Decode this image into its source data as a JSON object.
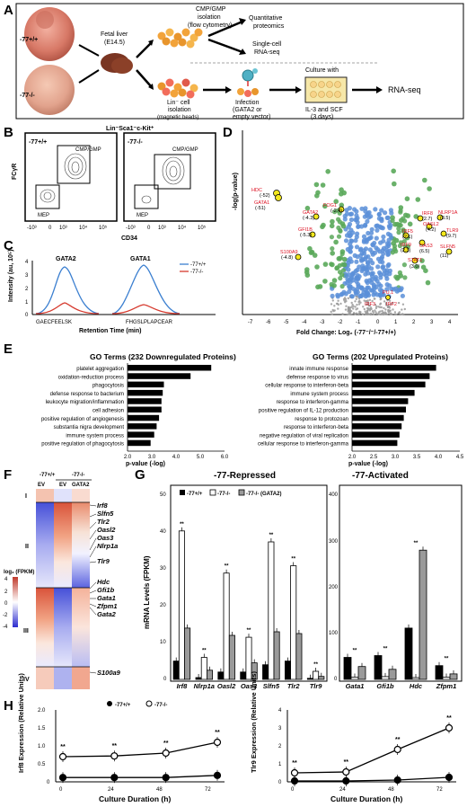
{
  "panels": {
    "A": {
      "letter": "A",
      "wt_label": "-77+/+",
      "ko_label": "-77-/-",
      "fetal_liver": "Fetal liver",
      "fetal_age": "(E14.5)",
      "cmp_iso_1": "CMP/GMP",
      "cmp_iso_2": "isolation",
      "cmp_iso_3": "(flow cytometry)",
      "quant_1": "Quantitative",
      "quant_2": "proteomics",
      "sc_1": "Single-cell",
      "sc_2": "RNA-seq",
      "lin_1": "Lin⁻ cell",
      "lin_2": "isolation",
      "lin_3": "(magnetic beads)",
      "inf_1": "Infection",
      "inf_2": "(GATA2 or",
      "inf_3": "empty vector)",
      "cult_1": "Culture with",
      "cult_2": "IL-3 and SCF",
      "cult_3": "(3 days)",
      "rnaseq": "RNA-seq"
    },
    "B": {
      "letter": "B",
      "title": "Lin⁻Sca1⁻c-Kit⁺",
      "wt": "-77+/+",
      "ko": "-77-/-",
      "gate_top": "CMP/GMP",
      "gate_bottom": "MEP",
      "ylabel": "FCγR",
      "xlabel": "CD34",
      "ticks_x": [
        "-10³",
        "0",
        "10³",
        "10⁴",
        "10⁵"
      ],
      "ticks_y": [
        "10⁵",
        "10⁴",
        "10³",
        "0",
        "-10³"
      ]
    },
    "C": {
      "letter": "C",
      "peak1": "GATA2",
      "peak2": "GATA1",
      "pep1": "GAECFEELSK",
      "pep2": "FHGSLPLAPCEAR",
      "ylabel": "Intensity (au, 10⁵)",
      "xlabel": "Retention Time (min)",
      "legend_wt": "-77+/+",
      "legend_ko": "-77-/-",
      "yticks": [
        "4",
        "3",
        "2",
        "1",
        "0"
      ]
    },
    "D": {
      "letter": "D",
      "ylabel": "-log(p-value)",
      "xlabel": "Fold Change: Log₂ (-77⁻/⁻/-77+/+)",
      "xticks": [
        "-7",
        "-6",
        "-5",
        "-4",
        "-3",
        "-2",
        "-1",
        "0",
        "1",
        "2",
        "3",
        "4"
      ],
      "labels": [
        {
          "gene": "HDC",
          "val": "(-52)"
        },
        {
          "gene": "GATA1",
          "val": "(-51)"
        },
        {
          "gene": "GATA2",
          "val": "(-4.3)"
        },
        {
          "gene": "FOG1",
          "val": "(-2.4)"
        },
        {
          "gene": "GFI1B",
          "val": "(-5.3)"
        },
        {
          "gene": "S100A9",
          "val": "(-4.8)"
        },
        {
          "gene": "IRF8",
          "val": "(2.7)"
        },
        {
          "gene": "OASL2",
          "val": "(4.2)"
        },
        {
          "gene": "NLRP1A",
          "val": "(8.5)"
        },
        {
          "gene": "TLR9",
          "val": "(9.7)"
        },
        {
          "gene": "IRF5",
          "val": "(2.1)"
        },
        {
          "gene": "IRF9",
          "val": "(2.3)"
        },
        {
          "gene": "OAS3",
          "val": "(6.5)"
        },
        {
          "gene": "SLFN5",
          "val": "(11)"
        },
        {
          "gene": "STAT1",
          "val": "(3.0)"
        },
        {
          "gene": "PU.1",
          "val": ""
        },
        {
          "gene": "IRF2",
          "val": ""
        },
        {
          "gene": "IRF3",
          "val": ""
        }
      ]
    },
    "E": {
      "letter": "E",
      "down_title": "GO Terms (232 Downregulated Proteins)",
      "up_title": "GO Terms (202 Upregulated Proteins)",
      "xlabel": "p-value (-log)",
      "down_ticks": [
        "2.0",
        "3.0",
        "4.0",
        "5.0",
        "6.0"
      ],
      "up_ticks": [
        "2.0",
        "2.5",
        "3.0",
        "3.5",
        "4.0",
        "4.5"
      ]
    },
    "F": {
      "letter": "F",
      "wt": "-77+/+",
      "ko": "-77-/-",
      "col1": "EV",
      "col2": "EV",
      "col3": "GATA2",
      "legend_title": "log₂ (FPKM)",
      "legend_ticks": [
        "4",
        "2",
        "0",
        "-2",
        "-4"
      ],
      "clusters": [
        "I",
        "II",
        "III",
        "IV"
      ],
      "genes": [
        "Irf8",
        "Slfn5",
        "Tlr2",
        "Oasl2",
        "Oas3",
        "Nlrp1a",
        "Tlr9",
        "Hdc",
        "Gfi1b",
        "Gata1",
        "Zfpm1",
        "Gata2",
        "S100a9"
      ]
    },
    "G": {
      "letter": "G",
      "repressed_title": "-77-Repressed",
      "activated_title": "-77-Activated",
      "ylabel": "mRNA Levels (FPKM)",
      "legend": [
        "-77+/+",
        "-77-/-",
        "-77-/- (GATA2)"
      ],
      "yticks_left": [
        "50",
        "40",
        "30",
        "20",
        "10",
        "0"
      ],
      "yticks_right": [
        "400",
        "300",
        "200",
        "100",
        "0"
      ]
    },
    "H": {
      "letter": "H",
      "legend_wt": "-77+/+",
      "legend_ko": "-77-/-",
      "left_ylabel": "Irf8 Expression (Relative Units)",
      "right_ylabel": "Tlr9 Expression (Relative Units)",
      "xlabel": "Culture Duration (h)",
      "xticks": [
        "0",
        "24",
        "48",
        "72"
      ],
      "left_yticks": [
        "2.0",
        "1.5",
        "1.0",
        "0.5",
        "0"
      ],
      "right_yticks": [
        "4",
        "3",
        "2",
        "1",
        "0"
      ]
    }
  },
  "chart_data": [
    {
      "type": "bar",
      "title": "GO Terms (232 Downregulated Proteins)",
      "xlabel": "p-value (-log)",
      "xlim": [
        2.0,
        6.0
      ],
      "categories": [
        "platelet aggregation",
        "oxidation-reduction process",
        "phagocytosis",
        "defense response to bacterium",
        "leukocyte migration/inflammation",
        "cell adhesion",
        "positive regulation of angiogenesis",
        "substantia nigra development",
        "immune system process",
        "positive regulation of phagocytosis"
      ],
      "values": [
        5.45,
        4.6,
        3.5,
        3.45,
        3.4,
        3.4,
        3.3,
        3.2,
        3.1,
        2.95
      ]
    },
    {
      "type": "bar",
      "title": "GO Terms (202 Upregulated Proteins)",
      "xlabel": "p-value (-log)",
      "xlim": [
        2.0,
        4.5
      ],
      "categories": [
        "innate immune response",
        "defense response to virus",
        "cellular response to interferon-beta",
        "immune system process",
        "response to interferon-gamma",
        "positive regulation of IL-12 production",
        "response to protozoan",
        "response to interferon-beta",
        "negative regulation of viral replication",
        "cellular response to interferon-gamma"
      ],
      "values": [
        3.95,
        3.8,
        3.7,
        3.45,
        3.3,
        3.25,
        3.2,
        3.15,
        3.1,
        3.05
      ]
    },
    {
      "type": "bar",
      "title": "-77-Repressed",
      "ylabel": "mRNA Levels (FPKM)",
      "ylim": [
        0,
        50
      ],
      "categories": [
        "Irf8",
        "Nlrp1a",
        "Oasl2",
        "Oas3",
        "Slfn5",
        "Tlr2",
        "Tlr9"
      ],
      "series": [
        {
          "name": "-77+/+",
          "values": [
            5,
            0.5,
            2,
            2,
            4,
            5,
            0.3
          ]
        },
        {
          "name": "-77-/-",
          "values": [
            40.5,
            6,
            29,
            11.5,
            37.5,
            31,
            2.2
          ]
        },
        {
          "name": "-77-/- (GATA2)",
          "values": [
            14,
            2.5,
            12,
            4.5,
            13,
            12.5,
            0.8
          ]
        }
      ]
    },
    {
      "type": "bar",
      "title": "-77-Activated",
      "ylim": [
        0,
        400
      ],
      "categories": [
        "Gata1",
        "Gfi1b",
        "Hdc",
        "Zfpm1"
      ],
      "series": [
        {
          "name": "-77+/+",
          "values": [
            48,
            52,
            112,
            30
          ]
        },
        {
          "name": "-77-/-",
          "values": [
            5,
            6,
            4,
            5
          ]
        },
        {
          "name": "-77-/- (GATA2)",
          "values": [
            28,
            22,
            282,
            12
          ]
        }
      ]
    },
    {
      "type": "line",
      "ylabel": "Irf8 Expression (Relative Units)",
      "xlabel": "Culture Duration (h)",
      "ylim": [
        0,
        2.0
      ],
      "x": [
        0,
        24,
        48,
        72
      ],
      "series": [
        {
          "name": "-77+/+",
          "values": [
            0.12,
            0.12,
            0.12,
            0.18
          ]
        },
        {
          "name": "-77-/-",
          "values": [
            0.7,
            0.72,
            0.8,
            1.1
          ]
        }
      ]
    },
    {
      "type": "line",
      "ylabel": "Tlr9 Expression (Relative Units)",
      "xlabel": "Culture Duration (h)",
      "ylim": [
        0,
        4
      ],
      "x": [
        0,
        24,
        48,
        72
      ],
      "series": [
        {
          "name": "-77+/+",
          "values": [
            0.05,
            0.05,
            0.1,
            0.25
          ]
        },
        {
          "name": "-77-/-",
          "values": [
            0.5,
            0.55,
            1.8,
            3.0
          ]
        }
      ]
    }
  ]
}
